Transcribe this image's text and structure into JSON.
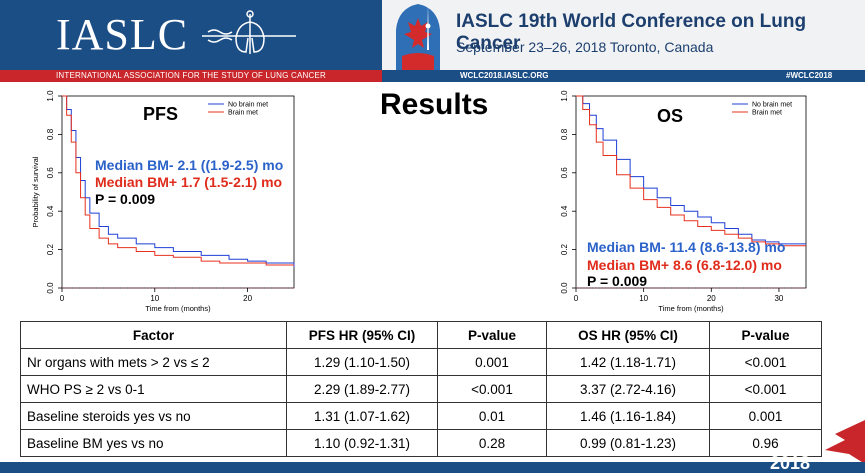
{
  "header": {
    "logo_text": "IASLC",
    "conference_title": "IASLC  19th World Conference on Lung Cancer",
    "conference_subtitle": "September 23–26, 2018  Toronto, Canada",
    "org_full": "INTERNATIONAL ASSOCIATION FOR THE STUDY OF LUNG CANCER",
    "url": "WCLC2018.IASLC.ORG",
    "hashtag": "#WCLC2018",
    "year": "2018"
  },
  "slide": {
    "title": "Results"
  },
  "colors": {
    "blue": "#1f3fd6",
    "red": "#e8301e",
    "median_blue": "#2b62c9",
    "median_red": "#e02c1c",
    "header_navy": "#1c4e86",
    "header_red": "#c8262b"
  },
  "chart_data": [
    {
      "type": "line",
      "title": "PFS",
      "xlabel": "Time from (months)",
      "ylabel": "Probability of survival",
      "xlim": [
        0,
        25
      ],
      "ylim": [
        0,
        1
      ],
      "xticks": [
        "0",
        "10",
        "20"
      ],
      "yticks": [
        "0.0",
        "0.2",
        "0.4",
        "0.6",
        "0.8",
        "1.0"
      ],
      "legend": [
        "No brain met",
        "Brain met"
      ],
      "legend_position": "top-right",
      "annotations": {
        "median_bm_minus": "Median BM- 2.1 ((1.9-2.5) mo",
        "median_bm_plus": "Median BM+ 1.7 (1.5-2.1) mo",
        "p_value": "P = 0.009"
      },
      "series": [
        {
          "name": "No brain met",
          "x": [
            0,
            0.5,
            1,
            1.5,
            2,
            2.5,
            3,
            4,
            5,
            6,
            8,
            10,
            12,
            15,
            18,
            20,
            22,
            25
          ],
          "y": [
            1,
            0.93,
            0.82,
            0.68,
            0.56,
            0.47,
            0.39,
            0.32,
            0.28,
            0.26,
            0.23,
            0.21,
            0.19,
            0.17,
            0.15,
            0.14,
            0.13,
            0.11
          ]
        },
        {
          "name": "Brain met",
          "x": [
            0,
            0.5,
            1,
            1.5,
            2,
            2.5,
            3,
            4,
            5,
            6,
            8,
            10,
            12,
            15,
            17,
            20,
            22,
            25
          ],
          "y": [
            1,
            0.9,
            0.76,
            0.6,
            0.47,
            0.38,
            0.31,
            0.26,
            0.23,
            0.21,
            0.19,
            0.17,
            0.16,
            0.14,
            0.13,
            0.13,
            0.12,
            0.12
          ]
        }
      ]
    },
    {
      "type": "line",
      "title": "OS",
      "xlabel": "Time from (months)",
      "ylabel": "",
      "xlim": [
        0,
        34
      ],
      "ylim": [
        0,
        1
      ],
      "xticks": [
        "0",
        "10",
        "20",
        "30"
      ],
      "yticks": [
        "0.0",
        "0.2",
        "0.4",
        "0.6",
        "0.8",
        "1.0"
      ],
      "legend": [
        "No brain met",
        "Brain met"
      ],
      "legend_position": "top-right",
      "annotations": {
        "median_bm_minus": "Median BM- 11.4 (8.6-13.8) mo",
        "median_bm_plus": "Median BM+ 8.6 (6.8-12.0) mo",
        "p_value": "P = 0.009"
      },
      "series": [
        {
          "name": "No brain met",
          "x": [
            0,
            1,
            2,
            3,
            4,
            6,
            8,
            10,
            12,
            14,
            16,
            18,
            20,
            22,
            24,
            26,
            28,
            30,
            34
          ],
          "y": [
            1,
            0.96,
            0.9,
            0.83,
            0.77,
            0.67,
            0.58,
            0.52,
            0.47,
            0.43,
            0.4,
            0.37,
            0.34,
            0.31,
            0.28,
            0.25,
            0.24,
            0.23,
            0.23
          ]
        },
        {
          "name": "Brain met",
          "x": [
            0,
            1,
            2,
            3,
            4,
            6,
            8,
            10,
            12,
            14,
            16,
            18,
            20,
            22,
            24,
            26,
            28,
            30,
            34
          ],
          "y": [
            1,
            0.93,
            0.85,
            0.76,
            0.69,
            0.59,
            0.52,
            0.46,
            0.42,
            0.38,
            0.35,
            0.32,
            0.3,
            0.28,
            0.26,
            0.24,
            0.23,
            0.22,
            0.22
          ]
        }
      ]
    },
    {
      "type": "table",
      "columns": [
        "Factor",
        "PFS HR  (95% CI)",
        "P-value",
        "OS HR (95% CI)",
        "P-value"
      ],
      "rows": [
        [
          "Nr organs with mets > 2 vs ≤ 2",
          "1.29 (1.10-1.50)",
          "0.001",
          "1.42 (1.18-1.71)",
          "<0.001"
        ],
        [
          "WHO PS ≥ 2 vs 0-1",
          "2.29 (1.89-2.77)",
          "<0.001",
          "3.37 (2.72-4.16)",
          "<0.001"
        ],
        [
          "Baseline steroids yes vs no",
          "1.31 (1.07-1.62)",
          "0.01",
          "1.46 (1.16-1.84)",
          "0.001"
        ],
        [
          "Baseline BM yes vs no",
          "1.10 (0.92-1.31)",
          "0.28",
          "0.99 (0.81-1.23)",
          "0.96"
        ]
      ]
    }
  ]
}
